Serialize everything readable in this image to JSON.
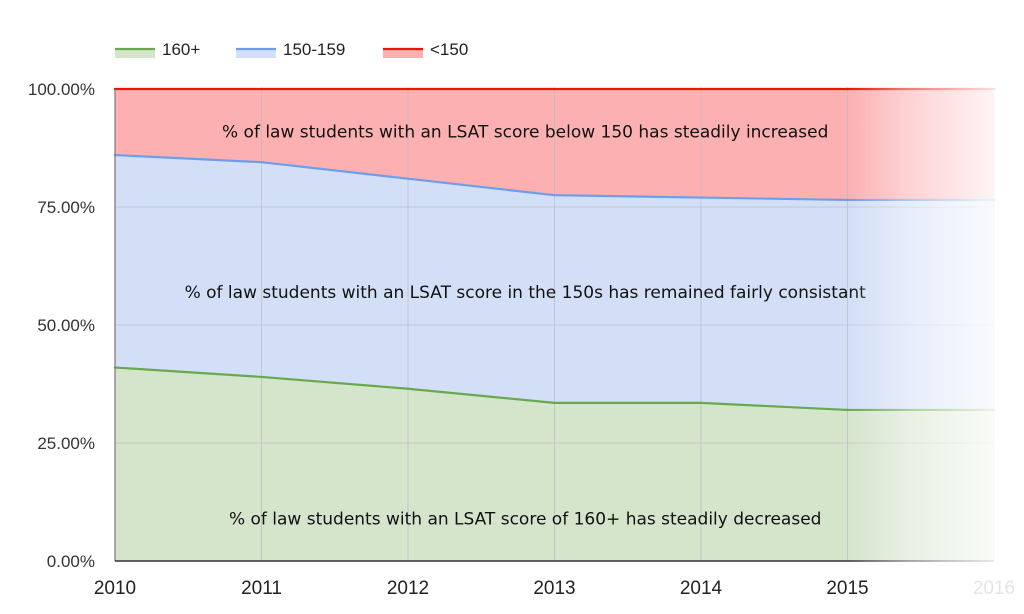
{
  "chart_data": {
    "type": "area",
    "stacked": true,
    "stacked_percent": true,
    "title": "",
    "xlabel": "",
    "ylabel": "",
    "x": [
      "2010",
      "2011",
      "2012",
      "2013",
      "2014",
      "2015",
      "2016"
    ],
    "ylim": [
      0,
      100
    ],
    "yticks": [
      0,
      25,
      50,
      75,
      100
    ],
    "ytick_labels": [
      "0.00%",
      "25.00%",
      "50.00%",
      "75.00%",
      "100.00%"
    ],
    "legend_position": "top-left",
    "grid": true,
    "series": [
      {
        "name": "160+",
        "values": [
          41,
          39,
          36.5,
          33.5,
          33.5,
          32,
          32
        ],
        "color": "#6aa84f",
        "fill": "#d5e5cc"
      },
      {
        "name": "150-159",
        "values": [
          45,
          45.5,
          44.5,
          44,
          43.5,
          44.5,
          44.5
        ],
        "color": "#6d9eeb",
        "fill": "#d3dff7"
      },
      {
        "name": "<150",
        "values": [
          14,
          15.5,
          19,
          22.5,
          23,
          23.5,
          23.5
        ],
        "color": "#e8140c",
        "fill": "#fcb0b2"
      }
    ],
    "annotations": [
      {
        "text": "% of law students with an LSAT score below 150 has steadily increased",
        "x": 2012.8,
        "y": 91
      },
      {
        "text": "% of law students with an LSAT score in the 150s has remained fairly consistant",
        "x": 2012.8,
        "y": 57
      },
      {
        "text": "% of law students with an LSAT score of 160+ has steadily decreased",
        "x": 2012.8,
        "y": 9
      }
    ]
  }
}
